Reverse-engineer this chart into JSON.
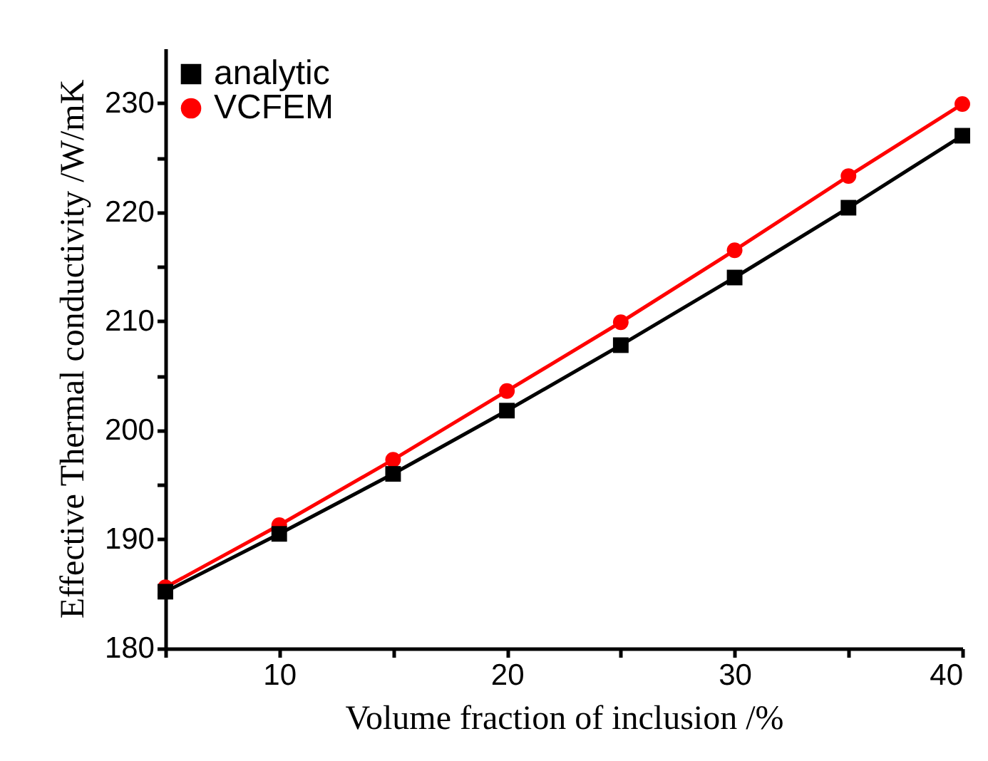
{
  "chart_data": {
    "type": "line",
    "xlabel": "Volume fraction of inclusion /%",
    "ylabel": "Effective Thermal conductivity /W/mK",
    "x": [
      5,
      10,
      15,
      20,
      25,
      30,
      35,
      40
    ],
    "series": [
      {
        "name": "analytic",
        "color": "#000000",
        "marker": "square",
        "values": [
          185.2,
          190.5,
          196.0,
          201.8,
          207.8,
          214.0,
          220.4,
          227.0
        ]
      },
      {
        "name": "VCFEM",
        "color": "#ff0000",
        "marker": "circle",
        "values": [
          185.6,
          191.3,
          197.3,
          203.6,
          209.9,
          216.5,
          223.3,
          229.9
        ]
      }
    ],
    "xlim": [
      5,
      40
    ],
    "xticks": [
      {
        "value": 5,
        "label": null
      },
      10,
      {
        "value": 15,
        "label": null
      },
      20,
      {
        "value": 25,
        "label": null
      },
      30,
      {
        "value": 35,
        "label": null
      },
      40
    ],
    "ylim": [
      180,
      235
    ],
    "yticks": [
      180,
      {
        "value": 185,
        "label": null
      },
      190,
      {
        "value": 195,
        "label": null
      },
      200,
      {
        "value": 205,
        "label": null
      },
      210,
      {
        "value": 215,
        "label": null
      },
      220,
      {
        "value": 225,
        "label": null
      },
      230
    ],
    "grid": false,
    "legend": "top left",
    "line_style": "solid"
  }
}
